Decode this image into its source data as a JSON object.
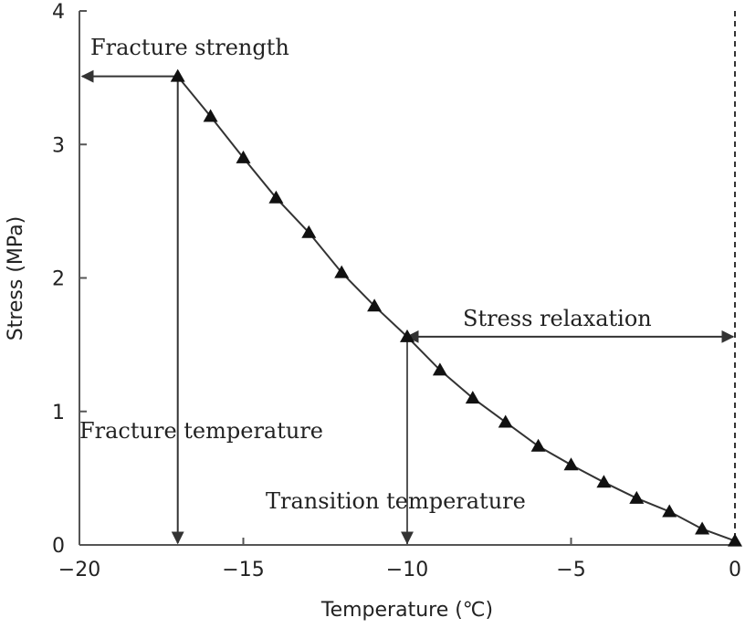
{
  "chart_data": {
    "type": "line",
    "xlabel": "Temperature (℃)",
    "ylabel": "Stress (MPa)",
    "xlim": [
      -20,
      0
    ],
    "ylim": [
      0,
      4
    ],
    "xticks": [
      -20,
      -15,
      -10,
      -5,
      0
    ],
    "yticks": [
      0,
      1,
      2,
      3,
      4
    ],
    "xtick_labels": [
      "−20",
      "−15",
      "−10",
      "−5",
      "0"
    ],
    "ytick_labels": [
      "0",
      "1",
      "2",
      "3",
      "4"
    ],
    "grid": false,
    "marker": "triangle",
    "line_color": "#333333",
    "series": [
      {
        "x": [
          -17,
          -16,
          -15,
          -14,
          -13,
          -12,
          -11,
          -10,
          -9,
          -8,
          -7,
          -6,
          -5,
          -4,
          -3,
          -2,
          -1,
          0
        ],
        "y": [
          3.51,
          3.21,
          2.9,
          2.6,
          2.34,
          2.04,
          1.79,
          1.56,
          1.31,
          1.1,
          0.92,
          0.74,
          0.6,
          0.47,
          0.35,
          0.25,
          0.12,
          0.03
        ]
      }
    ],
    "annotations": {
      "fracture_strength": {
        "text": "Fracture strength",
        "x": -17,
        "y": 3.51
      },
      "fracture_temperature": {
        "text": "Fracture temperature",
        "x": -17
      },
      "transition_temperature": {
        "text": "Transition temperature",
        "x": -10
      },
      "stress_relaxation": {
        "text": "Stress relaxation",
        "x_from": -10,
        "x_to": 0,
        "y": 1.56
      }
    }
  }
}
